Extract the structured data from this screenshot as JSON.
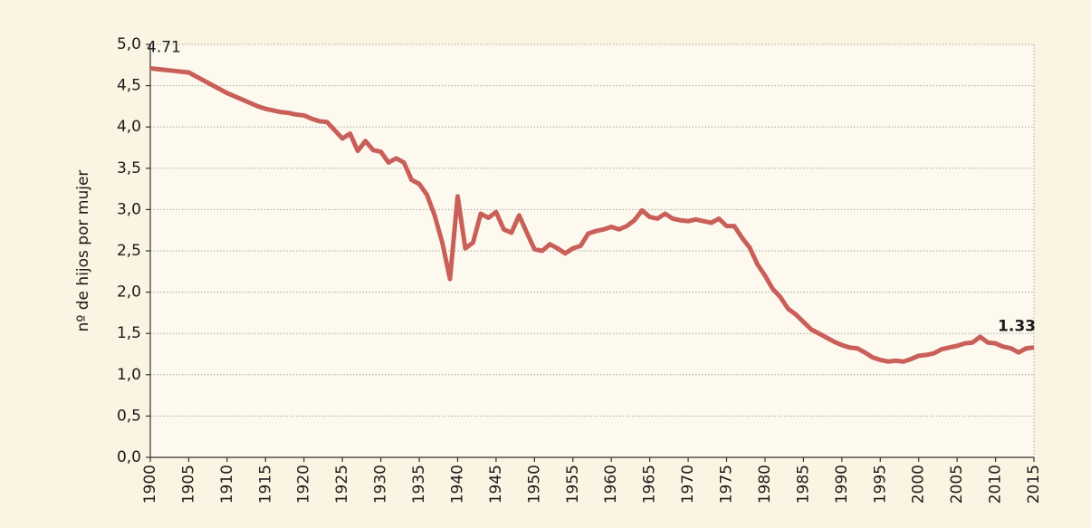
{
  "chart_data": {
    "type": "line",
    "y_label": "nº de hijos por mujer",
    "x": [
      1900,
      1901,
      1902,
      1903,
      1904,
      1905,
      1906,
      1907,
      1908,
      1909,
      1910,
      1911,
      1912,
      1913,
      1914,
      1915,
      1916,
      1917,
      1918,
      1919,
      1920,
      1921,
      1922,
      1923,
      1924,
      1925,
      1926,
      1927,
      1928,
      1929,
      1930,
      1931,
      1932,
      1933,
      1934,
      1935,
      1936,
      1937,
      1938,
      1939,
      1940,
      1941,
      1942,
      1943,
      1944,
      1945,
      1946,
      1947,
      1948,
      1949,
      1950,
      1951,
      1952,
      1953,
      1954,
      1955,
      1956,
      1957,
      1958,
      1959,
      1960,
      1961,
      1962,
      1963,
      1964,
      1965,
      1966,
      1967,
      1968,
      1969,
      1970,
      1971,
      1972,
      1973,
      1974,
      1975,
      1976,
      1977,
      1978,
      1979,
      1980,
      1981,
      1982,
      1983,
      1984,
      1985,
      1986,
      1987,
      1988,
      1989,
      1990,
      1991,
      1992,
      1993,
      1994,
      1995,
      1996,
      1997,
      1998,
      1999,
      2000,
      2001,
      2002,
      2003,
      2004,
      2005,
      2006,
      2007,
      2008,
      2009,
      2010,
      2011,
      2012,
      2013,
      2014,
      2015
    ],
    "series": [
      {
        "name": "nº de hijos por mujer",
        "color": "#c95f59",
        "values": [
          4.71,
          4.7,
          4.69,
          4.68,
          4.67,
          4.66,
          4.61,
          4.56,
          4.51,
          4.46,
          4.41,
          4.37,
          4.33,
          4.29,
          4.25,
          4.22,
          4.2,
          4.18,
          4.17,
          4.15,
          4.14,
          4.1,
          4.07,
          4.06,
          3.96,
          3.86,
          3.92,
          3.71,
          3.83,
          3.72,
          3.7,
          3.57,
          3.62,
          3.57,
          3.36,
          3.31,
          3.18,
          2.93,
          2.6,
          2.16,
          3.16,
          2.53,
          2.6,
          2.95,
          2.9,
          2.97,
          2.76,
          2.72,
          2.93,
          2.72,
          2.52,
          2.5,
          2.58,
          2.53,
          2.47,
          2.53,
          2.56,
          2.71,
          2.74,
          2.76,
          2.79,
          2.76,
          2.8,
          2.87,
          2.99,
          2.91,
          2.89,
          2.95,
          2.89,
          2.87,
          2.86,
          2.88,
          2.86,
          2.84,
          2.89,
          2.8,
          2.8,
          2.66,
          2.54,
          2.34,
          2.2,
          2.04,
          1.94,
          1.8,
          1.73,
          1.64,
          1.55,
          1.5,
          1.45,
          1.4,
          1.36,
          1.33,
          1.32,
          1.27,
          1.21,
          1.18,
          1.16,
          1.17,
          1.16,
          1.19,
          1.23,
          1.24,
          1.26,
          1.31,
          1.33,
          1.35,
          1.38,
          1.39,
          1.46,
          1.39,
          1.38,
          1.34,
          1.32,
          1.27,
          1.32,
          1.33
        ]
      }
    ],
    "annotations": [
      {
        "x": 1900,
        "label": "4.71",
        "bold": false
      },
      {
        "x": 2015,
        "label": "1.33",
        "bold": true
      }
    ],
    "xlim": [
      1900,
      2015
    ],
    "xticks": [
      1900,
      1905,
      1910,
      1915,
      1920,
      1925,
      1930,
      1935,
      1940,
      1945,
      1950,
      1955,
      1960,
      1965,
      1970,
      1975,
      1980,
      1985,
      1990,
      1995,
      2000,
      2005,
      2010,
      2015
    ],
    "ylim": [
      0,
      5
    ],
    "yticks": [
      {
        "value": 0,
        "label": "0,0"
      },
      {
        "value": 0.5,
        "label": "0,5"
      },
      {
        "value": 1,
        "label": "1,0"
      },
      {
        "value": 1.5,
        "label": "1,5"
      },
      {
        "value": 2,
        "label": "2,0"
      },
      {
        "value": 2.5,
        "label": "2,5"
      },
      {
        "value": 3,
        "label": "3,0"
      },
      {
        "value": 3.5,
        "label": "3,5"
      },
      {
        "value": 4,
        "label": "4,0"
      },
      {
        "value": 4.5,
        "label": "4,5"
      },
      {
        "value": 5,
        "label": "5,0"
      }
    ],
    "grid": true
  }
}
